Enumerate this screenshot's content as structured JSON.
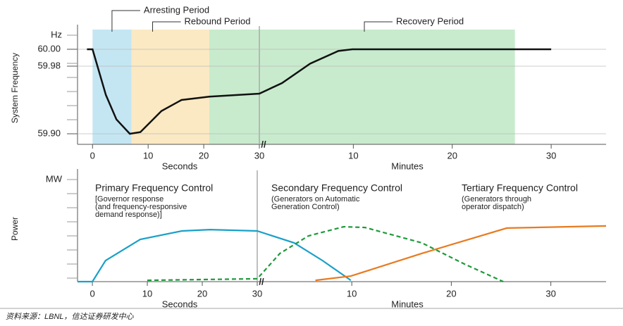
{
  "chart_data": [
    {
      "type": "line",
      "y_unit_label": "Hz",
      "ylabel": "System Frequency",
      "xlabel_left": "Seconds",
      "xlabel_right": "Minutes",
      "xbreak": 30,
      "xlim": [
        -2.7,
        2133
      ],
      "ylim": [
        59.8875,
        60.0208
      ],
      "xticks": [
        0,
        10,
        20,
        30,
        {
          "value": 600,
          "label": "10"
        },
        {
          "value": 1200,
          "label": "20"
        },
        {
          "value": 1800,
          "label": "30"
        }
      ],
      "yticks": [
        {
          "value": 60,
          "label": "60.00"
        },
        {
          "value": 59.98,
          "label": "59.98"
        },
        {
          "value": 59.9,
          "label": "59.90"
        }
      ],
      "regions": [
        {
          "label": "Arresting Period",
          "start": 0,
          "end": 7,
          "color": "#c4e6f3"
        },
        {
          "label": "Rebound Period",
          "start": 7,
          "end": 21,
          "color": "#fbe9c3"
        },
        {
          "label": "Recovery Period",
          "start": 21,
          "end": 1580,
          "color": "#c8ebcd"
        }
      ],
      "series": [
        {
          "name": "System Frequency",
          "color": "#111",
          "x": [
            -1,
            0,
            2.4,
            4.3,
            6.7,
            8.6,
            12.4,
            16,
            21,
            30,
            167,
            338,
            509,
            594,
            1800
          ],
          "values": [
            60,
            60,
            59.946,
            59.917,
            59.9,
            59.902,
            59.927,
            59.94,
            59.944,
            59.9475,
            59.96,
            59.983,
            59.998,
            60,
            60
          ]
        }
      ]
    },
    {
      "type": "line",
      "y_unit_label": "MW",
      "ylabel": "Power",
      "xlabel_left": "Seconds",
      "xlabel_right": "Minutes",
      "xbreak": 30,
      "xlim": [
        -2.7,
        2133
      ],
      "ylim": [
        0,
        100
      ],
      "xticks": [
        0,
        10,
        20,
        30,
        {
          "value": 600,
          "label": "10"
        },
        {
          "value": 1200,
          "label": "20"
        },
        {
          "value": 1800,
          "label": "30"
        }
      ],
      "series": [
        {
          "name": "Primary Frequency Control",
          "color": "#1aa0c8",
          "dashed": false,
          "description": [
            "[Governor response",
            "(and frequency-responsive",
            "demand response)]"
          ],
          "x": [
            -2.7,
            0,
            2.4,
            8.7,
            16.3,
            21.4,
            30,
            252,
            423,
            594
          ],
          "values": [
            0,
            0,
            20,
            40,
            48,
            49.3,
            48,
            36.7,
            20,
            1.3
          ]
        },
        {
          "name": "Secondary Frequency Control",
          "color": "#1e9a3c",
          "dashed": true,
          "description": [
            "(Generators on Automatic",
            "Generation Control)"
          ],
          "x": [
            10,
            30,
            167,
            338,
            552,
            680,
            1022,
            1278,
            1513
          ],
          "values": [
            1.3,
            2.7,
            26.7,
            43.3,
            52,
            51.3,
            36.7,
            16.7,
            0
          ]
        },
        {
          "name": "Tertiary Frequency Control",
          "color": "#e87a20",
          "dashed": false,
          "description": [
            "(Generators through",
            "operator dispatch)"
          ],
          "x": [
            381,
            594,
            1022,
            1535,
            2133
          ],
          "values": [
            1.3,
            5.3,
            26.7,
            50.7,
            52.7
          ]
        }
      ]
    }
  ],
  "source": "资料来源：LBNL，信达证券研发中心"
}
